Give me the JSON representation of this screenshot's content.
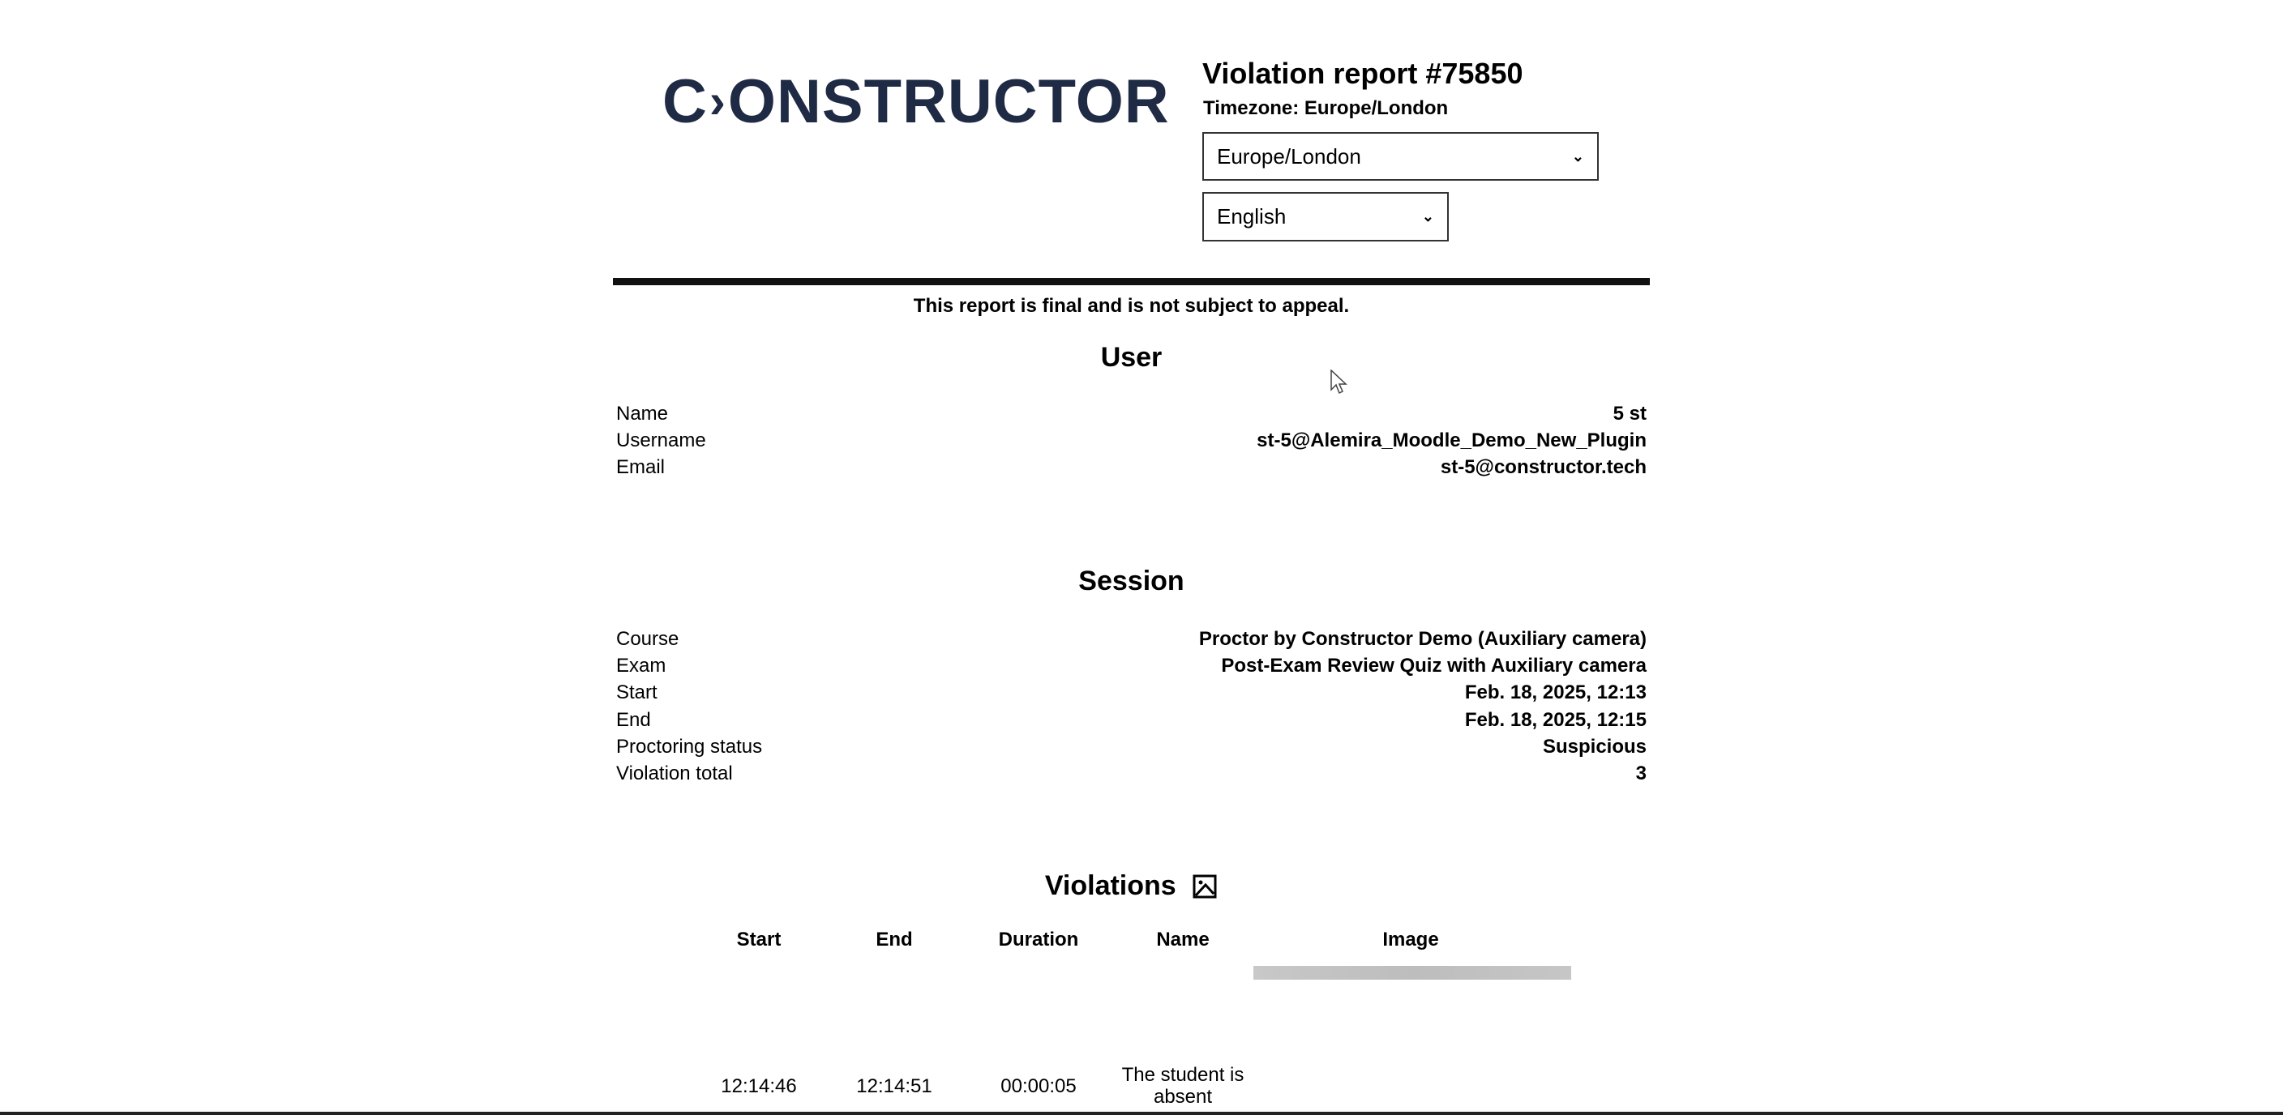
{
  "header": {
    "logo_text": "CONSTRUCTOR",
    "title": "Violation report #75850",
    "timezone_label": "Timezone: Europe/London",
    "timezone_select": "Europe/London",
    "language_select": "English",
    "brand_color": "#1f2a44"
  },
  "notice": "This report is final and is not subject to appeal.",
  "user": {
    "heading": "User",
    "rows": [
      {
        "label": "Name",
        "value": "5 st"
      },
      {
        "label": "Username",
        "value": "st-5@Alemira_Moodle_Demo_New_Plugin"
      },
      {
        "label": "Email",
        "value": "st-5@constructor.tech"
      }
    ]
  },
  "session": {
    "heading": "Session",
    "rows": [
      {
        "label": "Course",
        "value": "Proctor by Constructor Demo (Auxiliary camera)"
      },
      {
        "label": "Exam",
        "value": "Post-Exam Review Quiz with Auxiliary camera"
      },
      {
        "label": "Start",
        "value": "Feb. 18, 2025, 12:13"
      },
      {
        "label": "End",
        "value": "Feb. 18, 2025, 12:15"
      },
      {
        "label": "Proctoring status",
        "value": "Suspicious"
      },
      {
        "label": "Violation total",
        "value": "3"
      }
    ]
  },
  "violations": {
    "heading": "Violations",
    "columns": [
      "Start",
      "End",
      "Duration",
      "Name",
      "Image"
    ],
    "rows": [
      {
        "start": "12:14:46",
        "end": "12:14:51",
        "duration": "00:00:05",
        "name": "The student is absent"
      }
    ]
  }
}
